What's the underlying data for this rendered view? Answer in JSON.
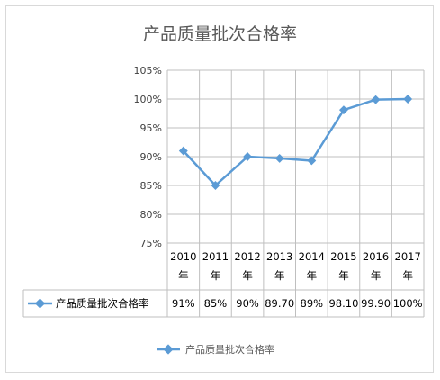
{
  "chart_data": {
    "type": "line",
    "title": "产品质量批次合格率",
    "categories": [
      {
        "year": "2010",
        "unit": "年"
      },
      {
        "year": "2011",
        "unit": "年"
      },
      {
        "year": "2012",
        "unit": "年"
      },
      {
        "year": "2013",
        "unit": "年"
      },
      {
        "year": "2014",
        "unit": "年"
      },
      {
        "year": "2015",
        "unit": "年"
      },
      {
        "year": "2016",
        "unit": "年"
      },
      {
        "year": "2017",
        "unit": "年"
      }
    ],
    "yticks": [
      "75%",
      "80%",
      "85%",
      "90%",
      "95%",
      "100%",
      "105%"
    ],
    "ylim": [
      75,
      105
    ],
    "grid": true,
    "legend_position": "bottom",
    "series": [
      {
        "name": "产品质量批次合格率",
        "color": "#5b9bd5",
        "values": [
          91,
          85,
          90,
          89.7,
          89.3,
          98.1,
          99.9,
          100
        ],
        "table_labels": [
          "91%",
          "85%",
          "90%",
          "89.70",
          "89%",
          "98.10",
          "99.90",
          "100%"
        ]
      }
    ]
  }
}
